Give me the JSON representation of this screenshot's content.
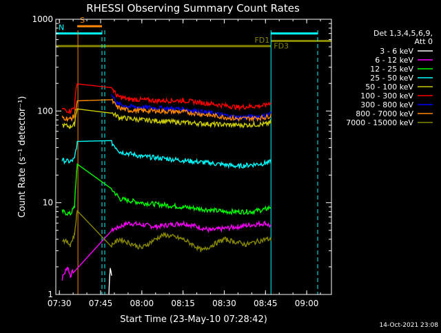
{
  "chart_data": {
    "type": "line",
    "title": "RHESSI Observing Summary Count Rates",
    "xlabel": "Start Time (23-May-10 07:28:42)",
    "ylabel": "Count Rate (s⁻¹ detector⁻¹)",
    "y_scale": "log",
    "ylim": [
      1,
      1000
    ],
    "xlim": [
      "07:28:42",
      "09:09:00"
    ],
    "x_ticks": [
      "07:30",
      "07:45",
      "08:00",
      "08:15",
      "08:30",
      "08:45",
      "09:00"
    ],
    "y_ticks": [
      "1",
      "10",
      "100",
      "1000"
    ],
    "legend_header": [
      "Det 1,3,4,5,6,9,",
      "Att 0"
    ],
    "footer": "14-Oct-2021 23:08",
    "series": [
      {
        "name": "3 - 6 keV",
        "color": "#ffffff",
        "x": [
          "07:48:00",
          "07:48:30",
          "07:49:00"
        ],
        "y": [
          1,
          2,
          1.6
        ]
      },
      {
        "name": "6 - 12 keV",
        "color": "#ff00ff",
        "x": [
          "07:31:00",
          "07:33:00",
          "07:34:00",
          "07:35:00",
          "07:49:00",
          "07:55:00",
          "08:05:00",
          "08:15:00",
          "08:25:00",
          "08:35:00",
          "08:45:00",
          "08:47:00"
        ],
        "y": [
          1.5,
          2,
          1.6,
          1.8,
          5,
          6,
          5.5,
          6,
          5,
          5.5,
          6,
          5.5
        ]
      },
      {
        "name": "12 - 25 keV",
        "color": "#00ff00",
        "x": [
          "07:31:00",
          "07:34:00",
          "07:35:30",
          "07:36:30",
          "07:49:00",
          "07:52:00",
          "08:00:00",
          "08:15:00",
          "08:30:00",
          "08:40:00",
          "08:45:00",
          "08:47:00"
        ],
        "y": [
          8,
          7.5,
          9,
          25,
          14,
          11,
          10,
          9,
          8,
          8,
          8.5,
          9
        ]
      },
      {
        "name": "25 - 50 keV",
        "color": "#00ffff",
        "x": [
          "07:31:00",
          "07:34:00",
          "07:35:30",
          "07:36:30",
          "07:49:00",
          "07:52:00",
          "08:00:00",
          "08:15:00",
          "08:25:00",
          "08:35:00",
          "08:45:00",
          "08:47:00"
        ],
        "y": [
          29,
          28,
          30,
          45,
          45,
          36,
          32,
          29,
          27,
          25,
          27,
          28
        ]
      },
      {
        "name": "50 - 100 keV",
        "color": "#cccc00",
        "x": [
          "07:31:00",
          "07:34:00",
          "07:35:30",
          "07:36:30",
          "07:49:00",
          "07:52:00",
          "08:00:00",
          "08:15:00",
          "08:25:00",
          "08:35:00",
          "08:45:00",
          "08:47:00"
        ],
        "y": [
          70,
          68,
          72,
          110,
          95,
          85,
          80,
          75,
          72,
          70,
          72,
          75
        ]
      },
      {
        "name": "100 - 300 keV",
        "color": "#ff0000",
        "x": [
          "07:31:00",
          "07:34:00",
          "07:35:30",
          "07:36:30",
          "07:49:00",
          "07:51:00",
          "07:55:00",
          "08:05:00",
          "08:15:00",
          "08:25:00",
          "08:35:00",
          "08:45:00",
          "08:47:00"
        ],
        "y": [
          105,
          100,
          110,
          210,
          180,
          145,
          135,
          130,
          130,
          120,
          110,
          115,
          125
        ]
      },
      {
        "name": "300 - 800 keV",
        "color": "#0000ff",
        "x": [
          "07:49:00",
          "07:51:00",
          "07:55:00",
          "08:05:00",
          "08:15:00",
          "08:25:00",
          "08:35:00",
          "08:45:00",
          "08:47:00"
        ],
        "y": [
          150,
          120,
          112,
          108,
          105,
          95,
          85,
          88,
          95
        ]
      },
      {
        "name": "800 - 7000 keV",
        "color": "#ff8800",
        "x": [
          "07:31:00",
          "07:34:00",
          "07:35:30",
          "07:36:30",
          "07:49:00",
          "07:51:00",
          "07:55:00",
          "08:05:00",
          "08:15:00",
          "08:25:00",
          "08:35:00",
          "08:45:00",
          "08:47:00"
        ],
        "y": [
          85,
          82,
          88,
          130,
          130,
          110,
          102,
          100,
          98,
          90,
          82,
          85,
          90
        ]
      },
      {
        "name": "7000 - 15000 keV",
        "color": "#888800",
        "x": [
          "07:31:00",
          "07:34:00",
          "07:35:30",
          "07:36:30",
          "07:49:00",
          "07:52:00",
          "08:00:00",
          "08:08:00",
          "08:15:00",
          "08:22:00",
          "08:30:00",
          "08:38:00",
          "08:45:00",
          "08:47:00"
        ],
        "y": [
          4,
          3.5,
          4.5,
          8,
          3.5,
          4,
          3.2,
          4.5,
          4,
          3,
          4,
          3.5,
          4,
          4
        ]
      }
    ],
    "flags": [
      {
        "label": "S",
        "color": "#ff8800",
        "start": "07:36:30",
        "end": "07:45:30",
        "level": 840
      },
      {
        "label": "N",
        "color": "#00ffff",
        "start": "07:28:42",
        "end": "07:45:30",
        "level": 700
      },
      {
        "label": "FD1",
        "color": "#888800",
        "start": "07:28:42",
        "end": "08:47:00",
        "level": 510
      },
      {
        "label": "FD3",
        "color": "#888800",
        "start": "08:47:00",
        "end": "09:09:00",
        "level": 580
      },
      {
        "label": "",
        "color": "#00ffff",
        "start": "08:47:00",
        "end": "09:04:00",
        "level": 700
      }
    ],
    "vertical_lines": [
      {
        "x": "07:28:42",
        "color": "#00ffff",
        "style": "solid"
      },
      {
        "x": "07:36:45",
        "color": "#ff8800",
        "style": "solid"
      },
      {
        "x": "07:45:30",
        "color": "#00ffff",
        "style": "dashed"
      },
      {
        "x": "07:46:30",
        "color": "#00ffff",
        "style": "dashed"
      },
      {
        "x": "08:47:00",
        "color": "#00ffff",
        "style": "solid"
      },
      {
        "x": "09:04:00",
        "color": "#00ffff",
        "style": "dashed"
      }
    ]
  }
}
